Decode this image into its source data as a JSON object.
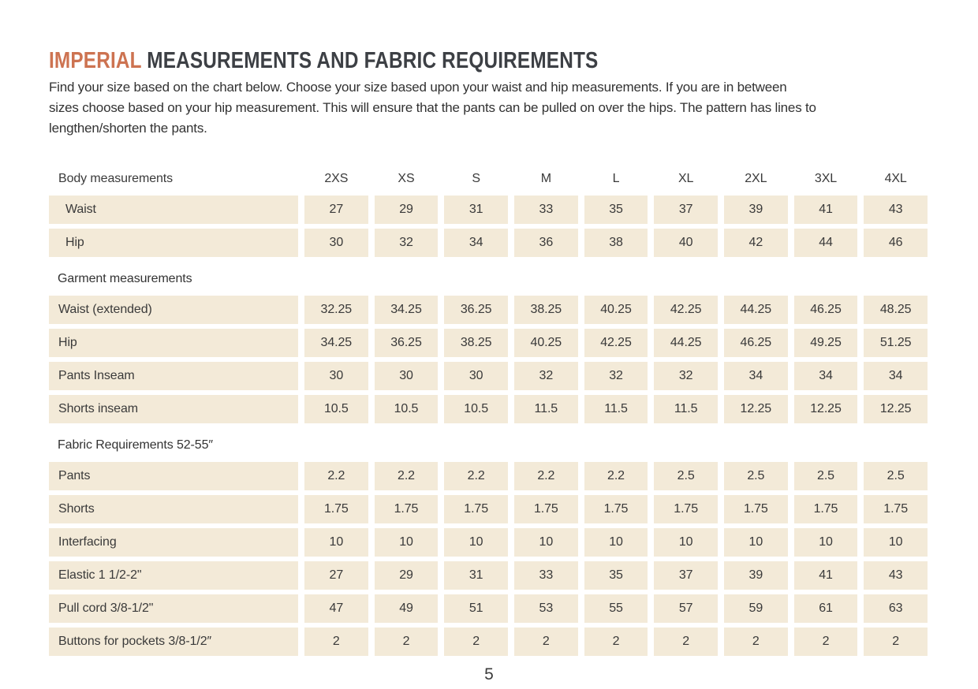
{
  "header": {
    "title_accent": "IMPERIAL",
    "title_rest": " MEASUREMENTS AND FABRIC REQUIREMENTS",
    "intro_lines": [
      "Find your size based on the chart below. Choose your size based upon your waist and hip measurements. If you are in between",
      "sizes choose based on your hip measurement. This will ensure that the pants can be pulled on over the hips. The pattern has lines to",
      "lengthen/shorten the pants."
    ]
  },
  "colors": {
    "accent_orange": "#cd7351",
    "cell_beige": "#f3ead8",
    "text_dark": "#3a3a3a"
  },
  "table": {
    "size_headers": [
      "2XS",
      "XS",
      "S",
      "M",
      "L",
      "XL",
      "2XL",
      "3XL",
      "4XL"
    ],
    "sections": [
      {
        "title": "Body measurements",
        "title_is_header_row": true,
        "indent_labels": true,
        "rows": [
          {
            "label": "Waist",
            "values": [
              "27",
              "29",
              "31",
              "33",
              "35",
              "37",
              "39",
              "41",
              "43"
            ]
          },
          {
            "label": "Hip",
            "values": [
              "30",
              "32",
              "34",
              "36",
              "38",
              "40",
              "42",
              "44",
              "46"
            ]
          }
        ]
      },
      {
        "title": "Garment measurements",
        "title_is_header_row": false,
        "indent_labels": false,
        "rows": [
          {
            "label": "Waist (extended)",
            "values": [
              "32.25",
              "34.25",
              "36.25",
              "38.25",
              "40.25",
              "42.25",
              "44.25",
              "46.25",
              "48.25"
            ]
          },
          {
            "label": "Hip",
            "values": [
              "34.25",
              "36.25",
              "38.25",
              "40.25",
              "42.25",
              "44.25",
              "46.25",
              "49.25",
              "51.25"
            ]
          },
          {
            "label": "Pants Inseam",
            "values": [
              "30",
              "30",
              "30",
              "32",
              "32",
              "32",
              "34",
              "34",
              "34"
            ]
          },
          {
            "label": "Shorts inseam",
            "values": [
              "10.5",
              "10.5",
              "10.5",
              "11.5",
              "11.5",
              "11.5",
              "12.25",
              "12.25",
              "12.25"
            ]
          }
        ]
      },
      {
        "title": "Fabric Requirements 52-55″",
        "title_is_header_row": false,
        "indent_labels": false,
        "rows": [
          {
            "label": "Pants",
            "values": [
              "2.2",
              "2.2",
              "2.2",
              "2.2",
              "2.2",
              "2.5",
              "2.5",
              "2.5",
              "2.5"
            ]
          },
          {
            "label": "Shorts",
            "values": [
              "1.75",
              "1.75",
              "1.75",
              "1.75",
              "1.75",
              "1.75",
              "1.75",
              "1.75",
              "1.75"
            ]
          },
          {
            "label": "Interfacing",
            "values": [
              "10",
              "10",
              "10",
              "10",
              "10",
              "10",
              "10",
              "10",
              "10"
            ]
          },
          {
            "label": "Elastic 1 1/2-2\"",
            "values": [
              "27",
              "29",
              "31",
              "33",
              "35",
              "37",
              "39",
              "41",
              "43"
            ]
          },
          {
            "label": "Pull cord 3/8-1/2\"",
            "values": [
              "47",
              "49",
              "51",
              "53",
              "55",
              "57",
              "59",
              "61",
              "63"
            ]
          },
          {
            "label": "Buttons for pockets 3/8-1/2″",
            "values": [
              "2",
              "2",
              "2",
              "2",
              "2",
              "2",
              "2",
              "2",
              "2"
            ]
          }
        ]
      }
    ]
  },
  "footer": {
    "page_number": "5"
  }
}
